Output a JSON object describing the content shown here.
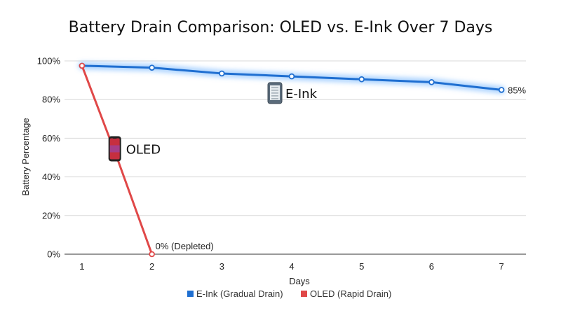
{
  "chart_data": {
    "type": "line",
    "title": "Battery Drain Comparison: OLED vs. E-Ink Over 7 Days",
    "xlabel": "Days",
    "ylabel": "Battery Percentage",
    "xlim": [
      0.75,
      7.35
    ],
    "ylim": [
      0,
      100
    ],
    "x_ticks": [
      1,
      2,
      3,
      4,
      5,
      6,
      7
    ],
    "y_ticks": [
      {
        "value": 0,
        "label": "0%"
      },
      {
        "value": 20,
        "label": "20%"
      },
      {
        "value": 40,
        "label": "40%"
      },
      {
        "value": 60,
        "label": "60%"
      },
      {
        "value": 80,
        "label": "80%"
      },
      {
        "value": 100,
        "label": "100%"
      }
    ],
    "grid": true,
    "legend": "bottom",
    "series": [
      {
        "name": "E-Ink (Gradual Drain)",
        "color": "#1f6fd1",
        "glow": true,
        "points": [
          [
            1,
            97.5
          ],
          [
            2,
            96.5
          ],
          [
            3,
            93.5
          ],
          [
            4,
            92
          ],
          [
            5,
            90.5
          ],
          [
            6,
            89
          ],
          [
            7,
            85
          ]
        ],
        "tag": {
          "text": "E-Ink",
          "icon": "e-reader-icon",
          "x": 4,
          "y": 83
        }
      },
      {
        "name": "OLED (Rapid Drain)",
        "color": "#e04848",
        "glow": false,
        "points": [
          [
            1,
            97.5
          ],
          [
            1.5,
            50
          ],
          [
            2,
            0
          ]
        ],
        "tag": {
          "text": "OLED",
          "icon": "smartphone-icon",
          "x": 1.75,
          "y": 52
        }
      }
    ],
    "annotations": [
      {
        "text": "85%",
        "x": 7,
        "y": 85
      },
      {
        "text": "0% (Depleted)",
        "x": 2,
        "y": 0
      }
    ]
  }
}
